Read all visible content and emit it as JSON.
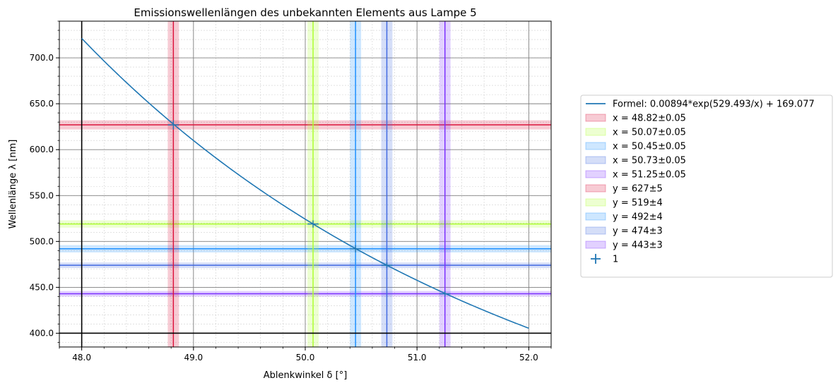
{
  "chart_data": {
    "type": "line",
    "title": "Emissionswellenlängen des unbekannten Elements aus Lampe 5",
    "xlabel": "Ablenkwinkel δ [°]",
    "ylabel": "Wellenlänge λ [nm]",
    "xlim": [
      47.8,
      52.2
    ],
    "ylim": [
      385,
      740
    ],
    "xticks": [
      48.0,
      49.0,
      50.0,
      51.0,
      52.0
    ],
    "yticks": [
      400.0,
      450.0,
      500.0,
      550.0,
      600.0,
      650.0,
      700.0
    ],
    "grid": true,
    "legend_position": "right",
    "curve": {
      "name": "Formel: 0.00894*exp(529.493/x) + 169.077",
      "color": "#1f77b4",
      "a": 0.00894,
      "b": 529.493,
      "c": 169.077,
      "x_range": [
        48.0,
        52.0
      ]
    },
    "vertical_bands": [
      {
        "name": "x = 48.82±0.05",
        "value": 48.82,
        "error": 0.05,
        "color": "#dc143c"
      },
      {
        "name": "x = 50.07±0.05",
        "value": 50.07,
        "error": 0.05,
        "color": "#adff2f"
      },
      {
        "name": "x = 50.45±0.05",
        "value": 50.45,
        "error": 0.05,
        "color": "#1e90ff"
      },
      {
        "name": "x = 50.73±0.05",
        "value": 50.73,
        "error": 0.05,
        "color": "#4169e1"
      },
      {
        "name": "x = 51.25±0.05",
        "value": 51.25,
        "error": 0.05,
        "color": "#7b2fff"
      }
    ],
    "horizontal_bands": [
      {
        "name": "y = 627±5",
        "value": 627,
        "error": 5,
        "color": "#dc143c"
      },
      {
        "name": "y = 519±4",
        "value": 519,
        "error": 4,
        "color": "#adff2f"
      },
      {
        "name": "y = 492±4",
        "value": 492,
        "error": 4,
        "color": "#1e90ff"
      },
      {
        "name": "y = 474±3",
        "value": 474,
        "error": 3,
        "color": "#4169e1"
      },
      {
        "name": "y = 443±3",
        "value": 443,
        "error": 3,
        "color": "#7b2fff"
      }
    ],
    "reference_lines": {
      "x": 48.0,
      "y": 400.0,
      "color": "#000000"
    },
    "points": {
      "name": "1",
      "color": "#1f77b4",
      "x": [
        48.82,
        50.07,
        50.45,
        50.73,
        51.25
      ],
      "y": [
        627,
        519,
        492,
        474,
        443
      ],
      "xerr": [
        0.05,
        0.05,
        0.05,
        0.05,
        0.05
      ],
      "yerr": [
        5,
        4,
        4,
        3,
        3
      ]
    }
  }
}
